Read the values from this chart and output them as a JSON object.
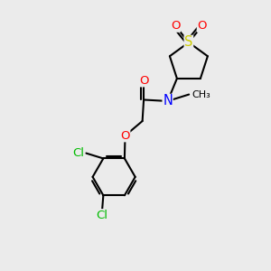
{
  "background_color": "#ebebeb",
  "figsize": [
    3.0,
    3.0
  ],
  "dpi": 100,
  "atom_colors": {
    "S": "#cccc00",
    "O": "#ff0000",
    "N": "#0000ff",
    "Cl": "#00bb00",
    "C": "#000000"
  },
  "bond_color": "#000000",
  "bond_width": 1.5,
  "font_size": 9.5
}
